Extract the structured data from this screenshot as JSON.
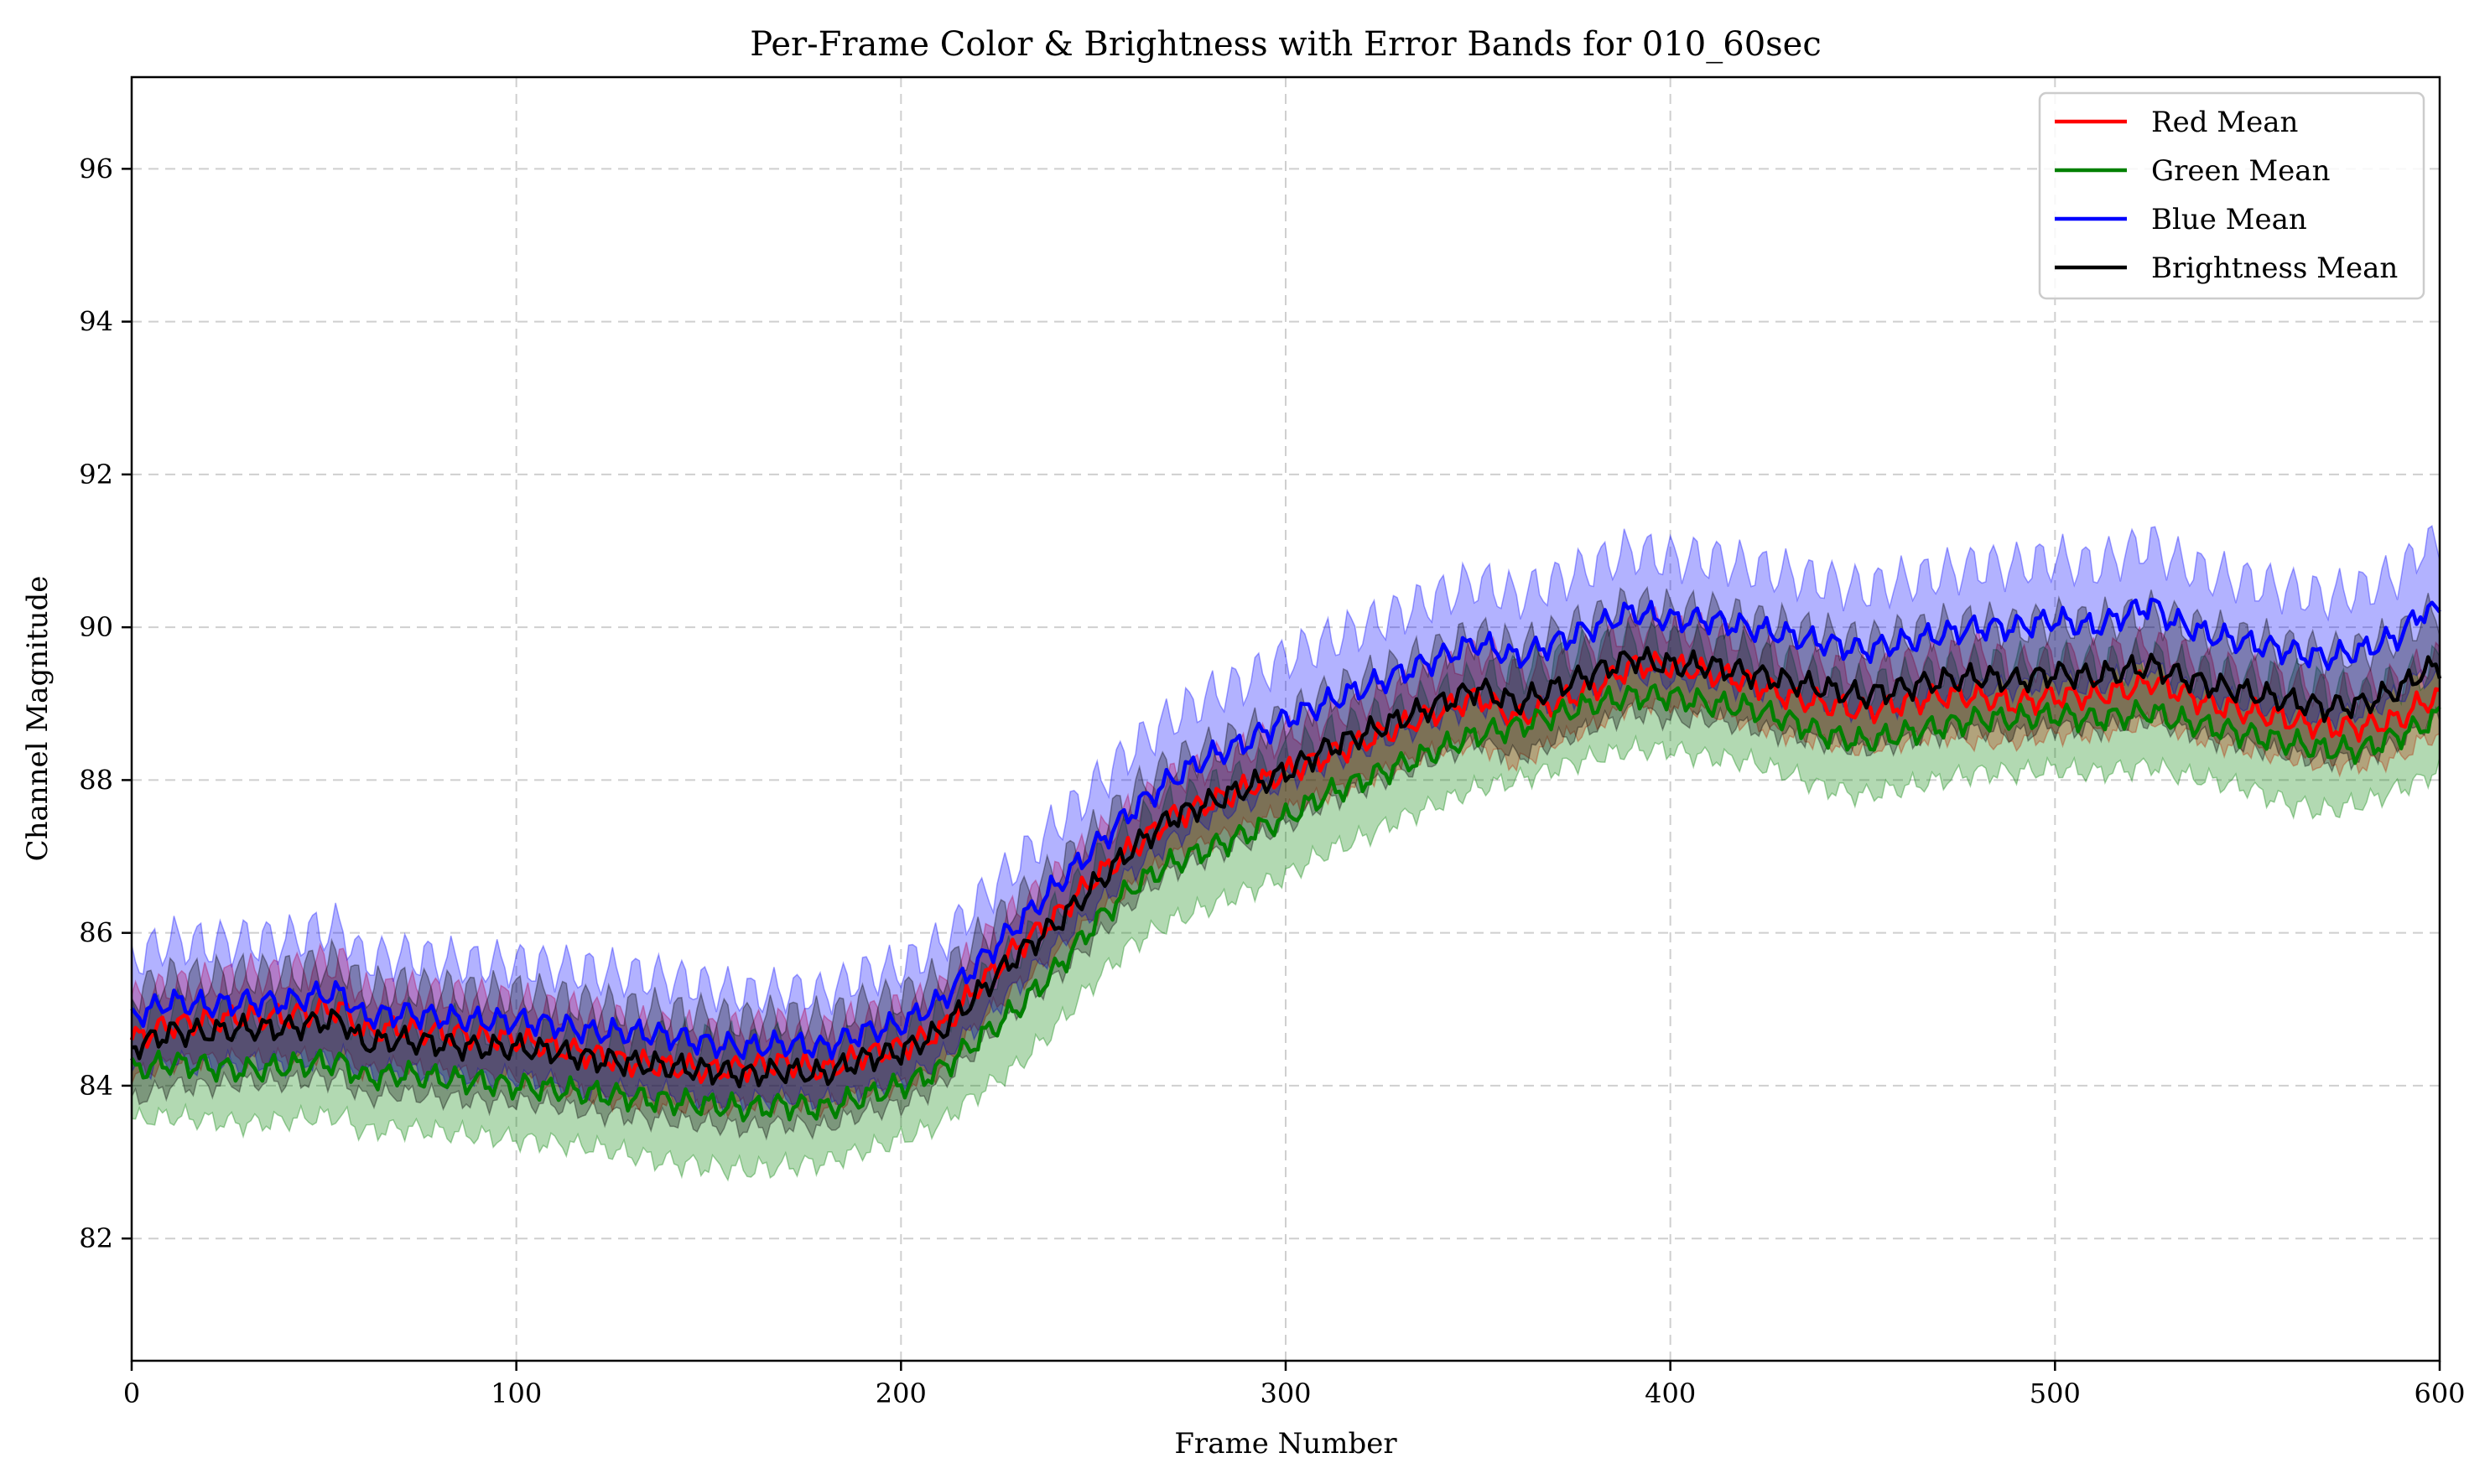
{
  "chart_data": {
    "type": "line",
    "title": "Per-Frame Color & Brightness with Error Bands for 010_60sec",
    "xlabel": "Frame Number",
    "ylabel": "Channel Magnitude",
    "xlim": [
      0,
      600
    ],
    "ylim": [
      80.4,
      97.2
    ],
    "xticks": [
      0,
      100,
      200,
      300,
      400,
      500,
      600
    ],
    "yticks": [
      82,
      84,
      86,
      88,
      90,
      92,
      94,
      96
    ],
    "xtick_labels": [
      "0",
      "100",
      "200",
      "300",
      "400",
      "500",
      "600"
    ],
    "ytick_labels": [
      "82",
      "84",
      "86",
      "88",
      "90",
      "92",
      "94",
      "96"
    ],
    "grid": true,
    "legend_position": "top-right",
    "x_keypoints": [
      0,
      10,
      20,
      30,
      40,
      50,
      55,
      60,
      70,
      80,
      90,
      100,
      110,
      120,
      130,
      140,
      150,
      160,
      170,
      180,
      190,
      200,
      210,
      220,
      230,
      240,
      250,
      260,
      270,
      280,
      290,
      300,
      310,
      320,
      330,
      340,
      350,
      360,
      370,
      380,
      390,
      400,
      410,
      420,
      430,
      440,
      450,
      460,
      470,
      480,
      490,
      500,
      510,
      520,
      525,
      530,
      540,
      550,
      560,
      570,
      580,
      590,
      595,
      600
    ],
    "series": [
      {
        "name": "Red Mean",
        "color": "#ff0000",
        "values": [
          84.6,
          84.8,
          84.85,
          84.9,
          84.9,
          85.0,
          85.0,
          84.7,
          84.75,
          84.7,
          84.65,
          84.6,
          84.5,
          84.4,
          84.3,
          84.25,
          84.2,
          84.25,
          84.3,
          84.2,
          84.4,
          84.5,
          84.7,
          85.3,
          85.8,
          86.2,
          86.7,
          87.1,
          87.5,
          87.7,
          87.9,
          88.1,
          88.3,
          88.5,
          88.7,
          88.9,
          89.1,
          88.8,
          89.0,
          89.2,
          89.5,
          89.5,
          89.4,
          89.3,
          89.1,
          89.0,
          88.9,
          89.0,
          89.1,
          89.1,
          89.0,
          89.1,
          89.1,
          89.2,
          89.3,
          89.2,
          89.0,
          88.9,
          88.8,
          88.7,
          88.7,
          88.8,
          89.0,
          89.1
        ],
        "band": [
          0.5,
          0.5,
          0.5,
          0.55,
          0.55,
          0.6,
          0.6,
          0.5,
          0.5,
          0.5,
          0.5,
          0.5,
          0.5,
          0.55,
          0.5,
          0.5,
          0.5,
          0.5,
          0.5,
          0.5,
          0.5,
          0.5,
          0.5,
          0.5,
          0.5,
          0.5,
          0.5,
          0.5,
          0.5,
          0.5,
          0.5,
          0.5,
          0.5,
          0.5,
          0.5,
          0.5,
          0.6,
          0.6,
          0.5,
          0.5,
          0.5,
          0.5,
          0.5,
          0.55,
          0.5,
          0.5,
          0.5,
          0.5,
          0.5,
          0.6,
          0.5,
          0.5,
          0.5,
          0.5,
          0.5,
          0.5,
          0.5,
          0.5,
          0.5,
          0.5,
          0.5,
          0.5,
          0.5,
          0.5
        ]
      },
      {
        "name": "Green Mean",
        "color": "#008000",
        "values": [
          84.2,
          84.3,
          84.25,
          84.2,
          84.25,
          84.3,
          84.3,
          84.1,
          84.15,
          84.1,
          84.05,
          84.0,
          83.95,
          83.9,
          83.85,
          83.8,
          83.75,
          83.7,
          83.75,
          83.7,
          83.85,
          84.0,
          84.2,
          84.6,
          85.0,
          85.5,
          86.1,
          86.6,
          86.9,
          87.1,
          87.3,
          87.5,
          87.8,
          88.0,
          88.2,
          88.4,
          88.6,
          88.7,
          88.85,
          89.0,
          89.1,
          89.1,
          89.0,
          88.95,
          88.8,
          88.6,
          88.5,
          88.6,
          88.7,
          88.8,
          88.8,
          88.85,
          88.8,
          88.85,
          88.9,
          88.8,
          88.7,
          88.6,
          88.5,
          88.4,
          88.4,
          88.6,
          88.7,
          88.85
        ],
        "band": [
          0.65,
          0.7,
          0.7,
          0.7,
          0.7,
          0.7,
          0.7,
          0.7,
          0.7,
          0.7,
          0.7,
          0.7,
          0.7,
          0.7,
          0.75,
          0.8,
          0.8,
          0.8,
          0.8,
          0.7,
          0.7,
          0.7,
          0.7,
          0.7,
          0.75,
          0.75,
          0.75,
          0.75,
          0.75,
          0.75,
          0.75,
          0.75,
          0.75,
          0.75,
          0.7,
          0.7,
          0.7,
          0.7,
          0.7,
          0.7,
          0.7,
          0.7,
          0.7,
          0.7,
          0.7,
          0.7,
          0.7,
          0.7,
          0.7,
          0.7,
          0.7,
          0.7,
          0.7,
          0.7,
          0.7,
          0.7,
          0.7,
          0.7,
          0.8,
          0.8,
          0.7,
          0.7,
          0.7,
          0.7
        ]
      },
      {
        "name": "Blue Mean",
        "color": "#0000ff",
        "values": [
          84.9,
          85.1,
          85.05,
          85.1,
          85.1,
          85.2,
          85.2,
          84.9,
          84.95,
          84.9,
          84.85,
          84.85,
          84.8,
          84.7,
          84.7,
          84.65,
          84.55,
          84.5,
          84.55,
          84.5,
          84.7,
          84.8,
          85.1,
          85.6,
          86.1,
          86.6,
          87.1,
          87.6,
          88.0,
          88.3,
          88.5,
          88.8,
          89.0,
          89.2,
          89.4,
          89.6,
          89.8,
          89.6,
          89.8,
          90.0,
          90.2,
          90.1,
          90.1,
          90.0,
          89.9,
          89.8,
          89.7,
          89.8,
          89.9,
          90.0,
          90.0,
          90.1,
          90.0,
          90.2,
          90.3,
          90.1,
          89.9,
          89.8,
          89.7,
          89.6,
          89.7,
          89.9,
          90.2,
          90.2
        ],
        "band": [
          0.75,
          0.8,
          0.8,
          0.8,
          0.8,
          0.85,
          0.85,
          0.75,
          0.75,
          0.75,
          0.75,
          0.75,
          0.75,
          0.8,
          0.75,
          0.75,
          0.75,
          0.7,
          0.7,
          0.7,
          0.75,
          0.75,
          0.75,
          0.8,
          0.8,
          0.8,
          0.8,
          0.8,
          0.8,
          0.8,
          0.8,
          0.8,
          0.8,
          0.8,
          0.8,
          0.8,
          0.8,
          0.8,
          0.8,
          0.8,
          0.8,
          0.8,
          0.8,
          0.8,
          0.8,
          0.8,
          0.8,
          0.8,
          0.8,
          0.8,
          0.8,
          0.8,
          0.8,
          0.8,
          0.8,
          0.8,
          0.8,
          0.8,
          0.8,
          0.8,
          0.8,
          0.8,
          0.85,
          0.85
        ]
      },
      {
        "name": "Brightness Mean",
        "color": "#000000",
        "values": [
          84.5,
          84.7,
          84.7,
          84.75,
          84.75,
          84.85,
          84.85,
          84.55,
          84.6,
          84.55,
          84.5,
          84.5,
          84.45,
          84.35,
          84.3,
          84.25,
          84.2,
          84.15,
          84.2,
          84.15,
          84.35,
          84.45,
          84.7,
          85.2,
          85.7,
          86.1,
          86.6,
          87.1,
          87.5,
          87.7,
          87.9,
          88.1,
          88.4,
          88.6,
          88.8,
          89.0,
          89.2,
          89.0,
          89.2,
          89.4,
          89.6,
          89.5,
          89.5,
          89.4,
          89.3,
          89.2,
          89.1,
          89.2,
          89.3,
          89.35,
          89.3,
          89.4,
          89.35,
          89.45,
          89.5,
          89.4,
          89.25,
          89.15,
          89.05,
          88.95,
          89.0,
          89.2,
          89.4,
          89.5
        ],
        "band": [
          0.7,
          0.7,
          0.7,
          0.7,
          0.7,
          0.75,
          0.75,
          0.7,
          0.7,
          0.7,
          0.7,
          0.7,
          0.7,
          0.7,
          0.7,
          0.7,
          0.7,
          0.7,
          0.7,
          0.7,
          0.7,
          0.7,
          0.7,
          0.7,
          0.7,
          0.7,
          0.7,
          0.7,
          0.7,
          0.7,
          0.7,
          0.7,
          0.7,
          0.7,
          0.7,
          0.7,
          0.7,
          0.7,
          0.7,
          0.7,
          0.7,
          0.7,
          0.7,
          0.7,
          0.7,
          0.7,
          0.7,
          0.7,
          0.7,
          0.7,
          0.7,
          0.7,
          0.7,
          0.7,
          0.7,
          0.7,
          0.7,
          0.7,
          0.7,
          0.7,
          0.7,
          0.7,
          0.7,
          0.7
        ]
      }
    ]
  }
}
